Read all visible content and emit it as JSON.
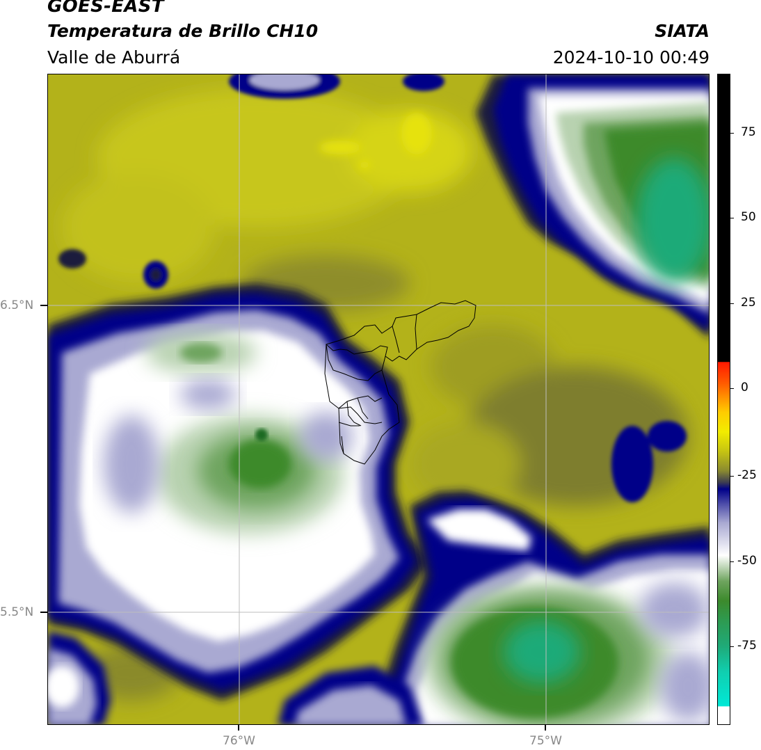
{
  "header": {
    "satellite": "GOES-EAST",
    "product": "Temperatura de Brillo CH10",
    "region": "Valle de Aburrá",
    "brand": "SIATA",
    "timestamp": "2024-10-10 00:49"
  },
  "map": {
    "lat_labels": [
      "6.5°N",
      "5.5°N"
    ],
    "lon_labels": [
      "76°W",
      "75°W"
    ],
    "gridlines": true,
    "overlay": "municipal boundaries of Valle de Aburrá"
  },
  "colorbar": {
    "ticks": [
      "75",
      "50",
      "25",
      "0",
      "-25",
      "-50",
      "-75"
    ],
    "tick_values": [
      75,
      50,
      25,
      0,
      -25,
      -50,
      -75
    ],
    "range": [
      -95,
      92
    ],
    "colors": {
      "black": "#000000",
      "red": "#ff2000",
      "orange": "#ff9a00",
      "yellow": "#f2ec00",
      "olive": "#b3b21a",
      "dark_navy": "#1e1e3c",
      "navy": "#000088",
      "lavender": "#a9a9d2",
      "white": "#ffffff",
      "light_green": "#b8d2b0",
      "green": "#3c8a2c",
      "teal": "#1faa78",
      "cyan": "#00e8d6"
    }
  }
}
